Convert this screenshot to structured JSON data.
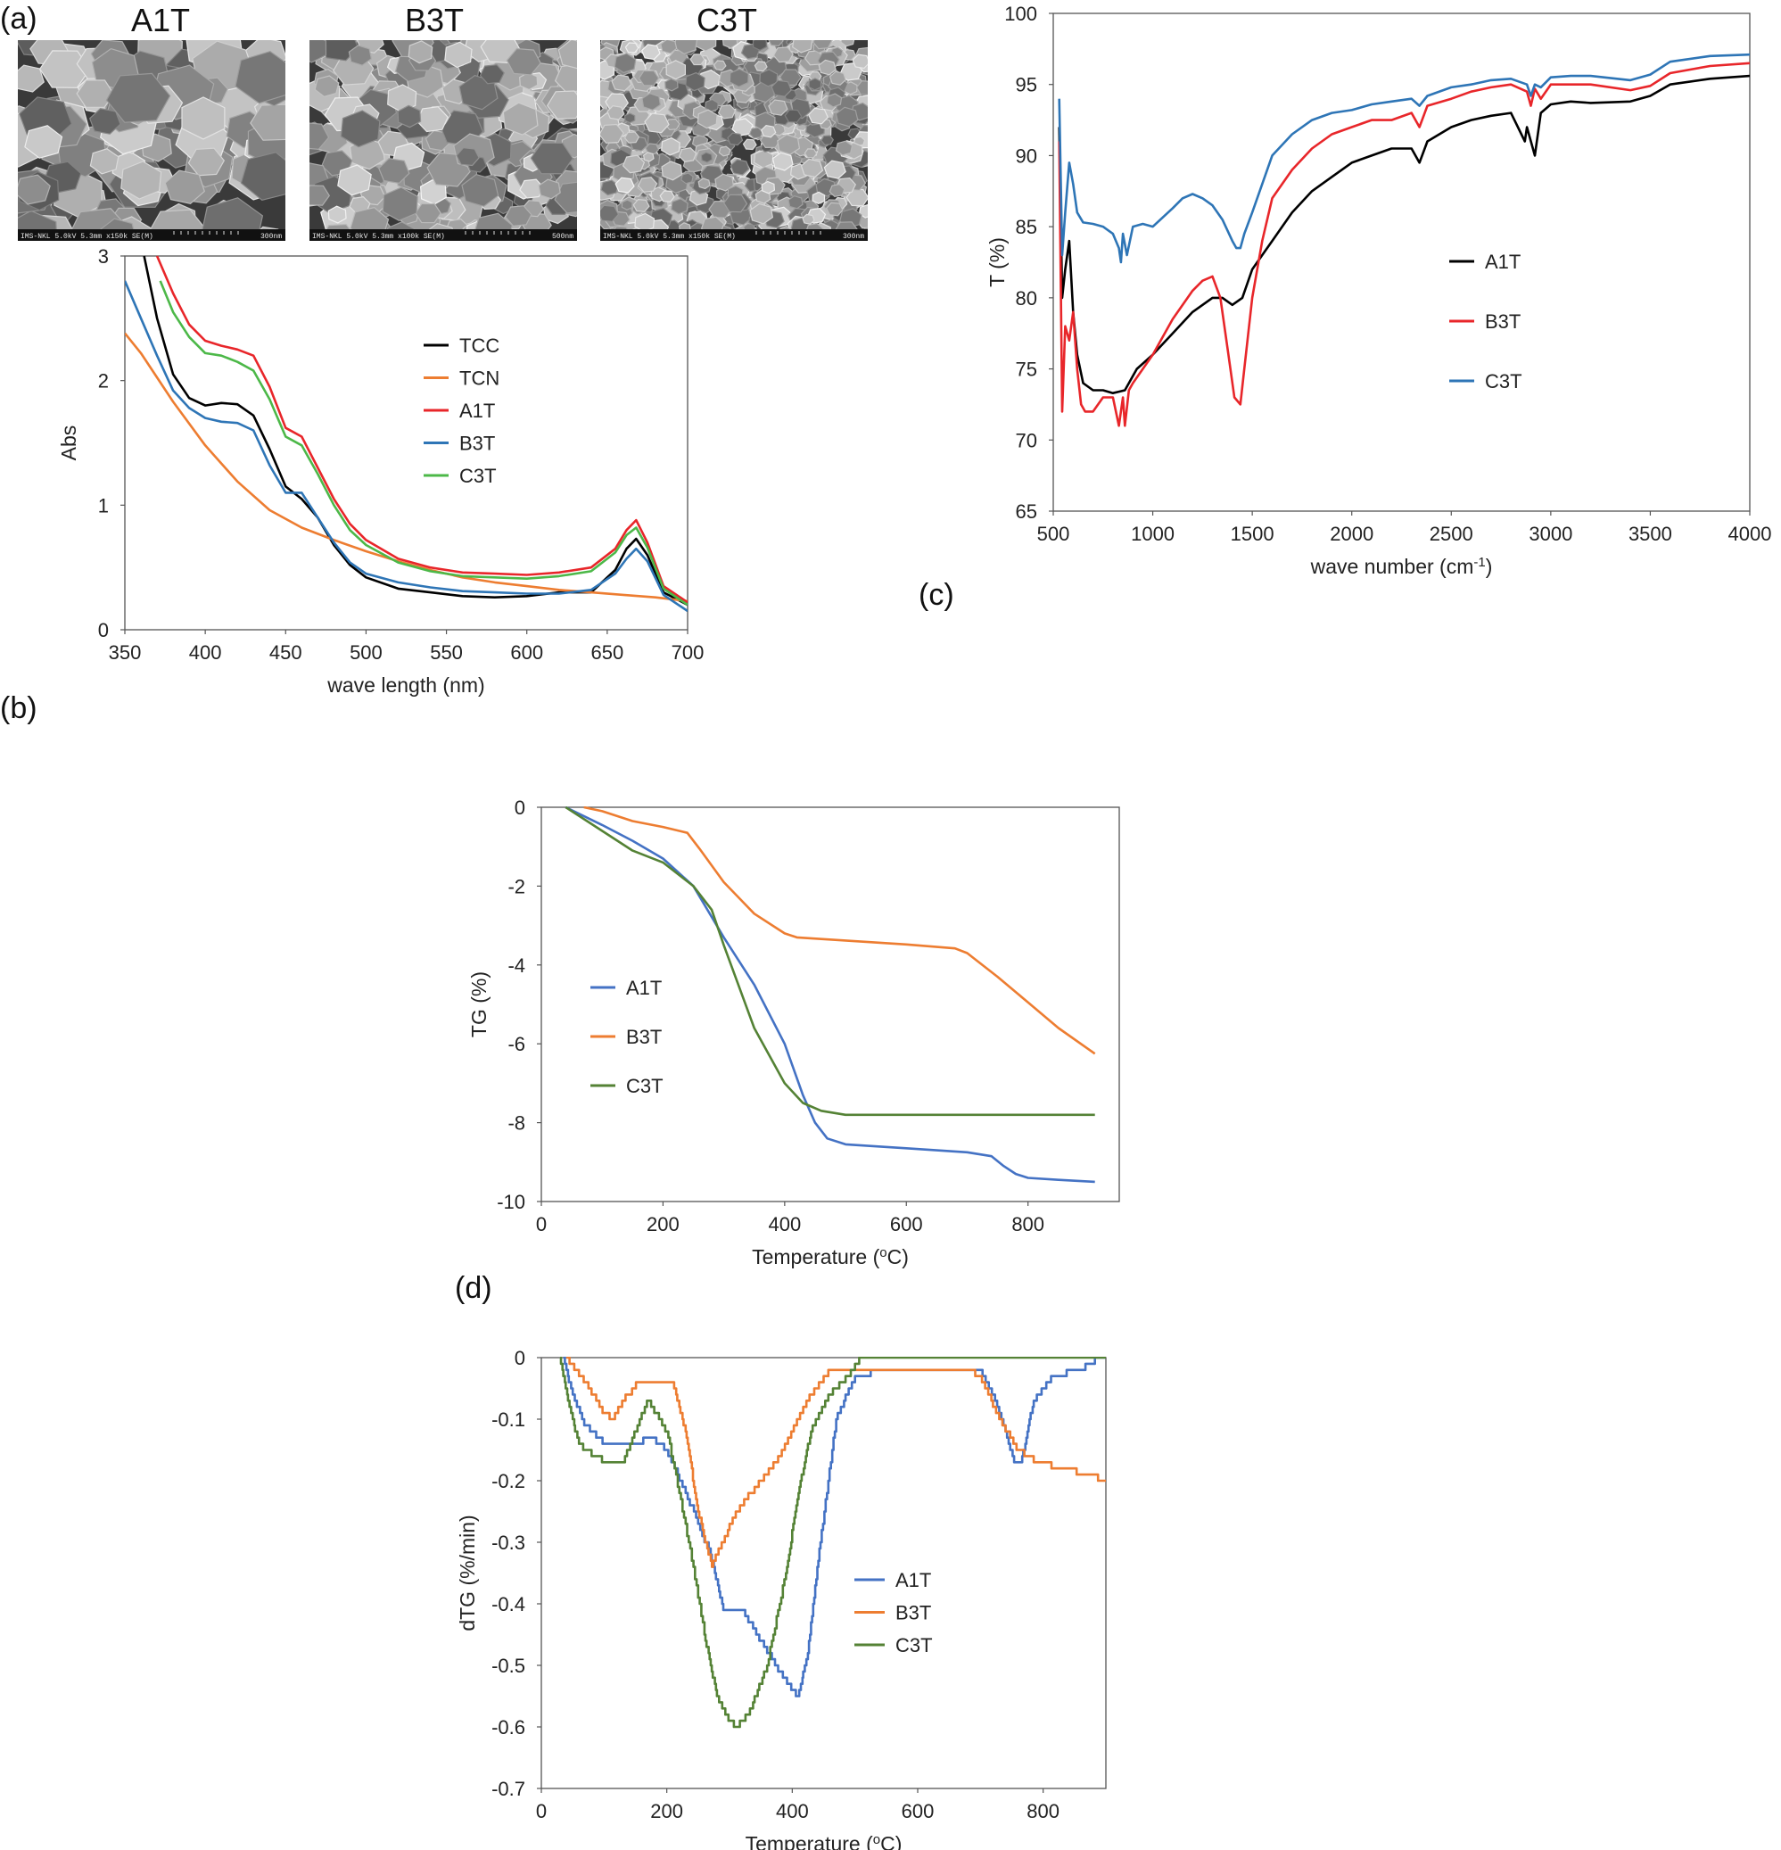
{
  "panel_labels": {
    "a": "(a)",
    "b": "(b)",
    "c": "(c)",
    "d": "(d)"
  },
  "sem": [
    {
      "title": "A1T",
      "caption": "IMS-NKL 5.0kV 5.3mm x150k SE(M)",
      "scale": "300nm",
      "grain": "large"
    },
    {
      "title": "B3T",
      "caption": "IMS-NKL 5.0kV 5.3mm x100k SE(M)",
      "scale": "500nm",
      "grain": "medium"
    },
    {
      "title": "C3T",
      "caption": "IMS-NKL 5.0kV 5.3mm x150k SE(M)",
      "scale": "300nm",
      "grain": "fine"
    }
  ],
  "chart_data": [
    {
      "id": "uvvis",
      "type": "line",
      "xlabel": "wave length (nm)",
      "ylabel": "Abs",
      "xlim": [
        350,
        700
      ],
      "ylim": [
        0,
        3
      ],
      "xticks": [
        350,
        400,
        450,
        500,
        550,
        600,
        650,
        700
      ],
      "yticks": [
        0,
        1,
        2,
        3
      ],
      "grid": false,
      "legend": "right",
      "series": [
        {
          "name": "TCC",
          "color": "#000000",
          "x": [
            362,
            370,
            380,
            390,
            400,
            410,
            420,
            430,
            440,
            450,
            460,
            470,
            480,
            490,
            500,
            520,
            540,
            560,
            580,
            600,
            620,
            640,
            655,
            662,
            668,
            675,
            685,
            700
          ],
          "y": [
            3.0,
            2.5,
            2.05,
            1.86,
            1.8,
            1.82,
            1.81,
            1.72,
            1.45,
            1.15,
            1.05,
            0.9,
            0.68,
            0.52,
            0.42,
            0.33,
            0.3,
            0.27,
            0.26,
            0.27,
            0.3,
            0.3,
            0.48,
            0.65,
            0.73,
            0.6,
            0.3,
            0.2
          ]
        },
        {
          "name": "TCN",
          "color": "#ED7D31",
          "x": [
            350,
            360,
            380,
            400,
            420,
            440,
            460,
            480,
            500,
            520,
            540,
            560,
            580,
            600,
            620,
            640,
            660,
            680,
            700
          ],
          "y": [
            2.38,
            2.22,
            1.83,
            1.48,
            1.19,
            0.96,
            0.82,
            0.72,
            0.63,
            0.55,
            0.48,
            0.42,
            0.38,
            0.35,
            0.32,
            0.3,
            0.28,
            0.26,
            0.23
          ]
        },
        {
          "name": "A1T",
          "color": "#E8262A",
          "x": [
            370,
            380,
            390,
            400,
            410,
            420,
            430,
            440,
            450,
            460,
            470,
            480,
            490,
            500,
            520,
            540,
            560,
            580,
            600,
            620,
            640,
            655,
            662,
            668,
            675,
            685,
            700
          ],
          "y": [
            3.0,
            2.7,
            2.45,
            2.32,
            2.28,
            2.25,
            2.2,
            1.95,
            1.62,
            1.55,
            1.3,
            1.05,
            0.85,
            0.72,
            0.57,
            0.5,
            0.46,
            0.45,
            0.44,
            0.46,
            0.5,
            0.65,
            0.8,
            0.88,
            0.7,
            0.35,
            0.22
          ]
        },
        {
          "name": "B3T",
          "color": "#2E75B6",
          "x": [
            350,
            360,
            370,
            380,
            390,
            400,
            410,
            420,
            430,
            440,
            450,
            460,
            470,
            480,
            490,
            500,
            520,
            540,
            560,
            580,
            600,
            620,
            640,
            655,
            662,
            668,
            675,
            685,
            700
          ],
          "y": [
            2.8,
            2.5,
            2.2,
            1.92,
            1.78,
            1.7,
            1.67,
            1.66,
            1.6,
            1.32,
            1.1,
            1.1,
            0.9,
            0.7,
            0.54,
            0.45,
            0.38,
            0.34,
            0.31,
            0.3,
            0.29,
            0.29,
            0.32,
            0.45,
            0.57,
            0.65,
            0.55,
            0.28,
            0.15
          ]
        },
        {
          "name": "C3T",
          "color": "#4CB848",
          "x": [
            372,
            380,
            390,
            400,
            410,
            420,
            430,
            440,
            450,
            460,
            470,
            480,
            490,
            500,
            520,
            540,
            560,
            580,
            600,
            620,
            640,
            655,
            662,
            668,
            675,
            685,
            700
          ],
          "y": [
            2.8,
            2.55,
            2.35,
            2.22,
            2.2,
            2.15,
            2.08,
            1.85,
            1.55,
            1.48,
            1.25,
            1.0,
            0.8,
            0.68,
            0.54,
            0.47,
            0.43,
            0.42,
            0.41,
            0.43,
            0.47,
            0.62,
            0.76,
            0.82,
            0.66,
            0.33,
            0.2
          ]
        }
      ]
    },
    {
      "id": "ftir",
      "type": "line",
      "xlabel": "wave number (cm-1)",
      "xlabel_main": "wave number (cm",
      "xlabel_sup": "-1",
      "xlabel_end": ")",
      "ylabel": "T (%)",
      "xlim": [
        500,
        4000
      ],
      "ylim": [
        65,
        100
      ],
      "xticks": [
        500,
        1000,
        1500,
        2000,
        2500,
        3000,
        3500,
        4000
      ],
      "yticks": [
        65,
        70,
        75,
        80,
        85,
        90,
        95,
        100
      ],
      "grid": false,
      "legend": "right",
      "series": [
        {
          "name": "A1T",
          "color": "#000000",
          "x": [
            530,
            545,
            560,
            580,
            600,
            620,
            650,
            700,
            750,
            800,
            830,
            860,
            880,
            920,
            1000,
            1100,
            1200,
            1300,
            1350,
            1400,
            1450,
            1500,
            1550,
            1600,
            1700,
            1800,
            1900,
            2000,
            2100,
            2200,
            2300,
            2340,
            2380,
            2500,
            2600,
            2700,
            2800,
            2870,
            2880,
            2920,
            2950,
            3000,
            3100,
            3200,
            3400,
            3500,
            3600,
            3800,
            4000
          ],
          "y": [
            92,
            80,
            82,
            84,
            79,
            76,
            74,
            73.5,
            73.5,
            73.3,
            73.4,
            73.5,
            74,
            75,
            76,
            77.5,
            79,
            80,
            80,
            79.5,
            80,
            82,
            83,
            84,
            86,
            87.5,
            88.5,
            89.5,
            90,
            90.5,
            90.5,
            89.5,
            91,
            92,
            92.5,
            92.8,
            93,
            91,
            92,
            90,
            93,
            93.6,
            93.8,
            93.7,
            93.8,
            94.2,
            95,
            95.4,
            95.6
          ]
        },
        {
          "name": "B3T",
          "color": "#E8262A",
          "x": [
            530,
            545,
            560,
            580,
            600,
            620,
            640,
            660,
            700,
            750,
            800,
            830,
            850,
            860,
            880,
            900,
            950,
            1000,
            1100,
            1200,
            1250,
            1300,
            1340,
            1380,
            1410,
            1440,
            1460,
            1500,
            1550,
            1600,
            1700,
            1800,
            1900,
            2000,
            2100,
            2200,
            2300,
            2340,
            2380,
            2500,
            2600,
            2700,
            2800,
            2880,
            2900,
            2920,
            2950,
            3000,
            3100,
            3200,
            3400,
            3500,
            3600,
            3800,
            4000
          ],
          "y": [
            91,
            72,
            78,
            77,
            79,
            75,
            72.5,
            72,
            72,
            73,
            73,
            71,
            73,
            71,
            73.5,
            74,
            75,
            76,
            78.5,
            80.5,
            81.2,
            81.5,
            80,
            76,
            73,
            72.5,
            75,
            80,
            84,
            87,
            89,
            90.5,
            91.5,
            92,
            92.5,
            92.5,
            93,
            92,
            93.5,
            94,
            94.5,
            94.8,
            95,
            94.5,
            93.5,
            94.7,
            94,
            95,
            95,
            95,
            94.6,
            94.9,
            95.8,
            96.3,
            96.5
          ]
        },
        {
          "name": "C3T",
          "color": "#2E75B6",
          "x": [
            530,
            545,
            560,
            580,
            600,
            620,
            650,
            700,
            750,
            800,
            830,
            840,
            850,
            870,
            900,
            950,
            1000,
            1100,
            1150,
            1200,
            1250,
            1300,
            1350,
            1400,
            1420,
            1440,
            1460,
            1500,
            1550,
            1600,
            1700,
            1800,
            1900,
            2000,
            2100,
            2200,
            2300,
            2340,
            2380,
            2500,
            2600,
            2700,
            2800,
            2880,
            2900,
            2920,
            2950,
            3000,
            3100,
            3200,
            3400,
            3500,
            3600,
            3800,
            4000
          ],
          "y": [
            94,
            83,
            86,
            89.5,
            88,
            86,
            85.3,
            85.2,
            85,
            84.5,
            83.5,
            82.5,
            84.5,
            83,
            85,
            85.2,
            85,
            86.3,
            87,
            87.3,
            87,
            86.5,
            85.5,
            84,
            83.5,
            83.5,
            84.5,
            86,
            88,
            90,
            91.5,
            92.5,
            93,
            93.2,
            93.6,
            93.8,
            94,
            93.5,
            94.2,
            94.8,
            95,
            95.3,
            95.4,
            95,
            94.2,
            95,
            94.8,
            95.5,
            95.6,
            95.6,
            95.3,
            95.7,
            96.6,
            97,
            97.1
          ]
        }
      ]
    },
    {
      "id": "tg",
      "type": "line",
      "xlabel": "Temperature (oC)",
      "xlabel_main": "Temperature (",
      "xlabel_sup": "o",
      "xlabel_end": "C)",
      "ylabel": "TG (%)",
      "xlim": [
        0,
        950
      ],
      "ylim": [
        -10,
        0
      ],
      "xticks": [
        0,
        200,
        400,
        600,
        800
      ],
      "yticks": [
        0,
        -2,
        -4,
        -6,
        -8,
        -10
      ],
      "grid": false,
      "legend": "left-center",
      "series": [
        {
          "name": "A1T",
          "color": "#4472C4",
          "x": [
            40,
            100,
            150,
            200,
            250,
            300,
            350,
            400,
            430,
            450,
            470,
            500,
            600,
            700,
            740,
            760,
            780,
            800,
            850,
            910
          ],
          "y": [
            0,
            -0.45,
            -0.85,
            -1.3,
            -2.0,
            -3.3,
            -4.5,
            -6.0,
            -7.3,
            -8.0,
            -8.4,
            -8.55,
            -8.65,
            -8.75,
            -8.85,
            -9.1,
            -9.3,
            -9.4,
            -9.45,
            -9.5
          ]
        },
        {
          "name": "B3T",
          "color": "#ED7D31",
          "x": [
            70,
            100,
            150,
            200,
            240,
            260,
            300,
            350,
            400,
            420,
            500,
            600,
            680,
            700,
            750,
            800,
            850,
            910
          ],
          "y": [
            0,
            -0.1,
            -0.35,
            -0.5,
            -0.65,
            -1.05,
            -1.9,
            -2.7,
            -3.2,
            -3.3,
            -3.38,
            -3.48,
            -3.58,
            -3.7,
            -4.3,
            -4.95,
            -5.6,
            -6.25
          ]
        },
        {
          "name": "C3T",
          "color": "#548235",
          "x": [
            40,
            100,
            150,
            200,
            250,
            280,
            300,
            350,
            400,
            430,
            460,
            500,
            600,
            700,
            800,
            910
          ],
          "y": [
            0,
            -0.6,
            -1.1,
            -1.4,
            -2.0,
            -2.6,
            -3.5,
            -5.6,
            -7.0,
            -7.5,
            -7.7,
            -7.8,
            -7.8,
            -7.8,
            -7.8,
            -7.8
          ]
        }
      ]
    },
    {
      "id": "dtg",
      "type": "line",
      "xlabel": "Temperature (oC)",
      "xlabel_main": "Temperature (",
      "xlabel_sup": "o",
      "xlabel_end": "C)",
      "ylabel": "dTG (%/min)",
      "xlim": [
        0,
        900
      ],
      "ylim": [
        -0.7,
        0
      ],
      "xticks": [
        0,
        200,
        400,
        600,
        800
      ],
      "yticks": [
        0,
        -0.1,
        -0.2,
        -0.3,
        -0.4,
        -0.5,
        -0.6,
        -0.7
      ],
      "grid": false,
      "legend": "right-center",
      "series": [
        {
          "name": "A1T",
          "color": "#4472C4",
          "x": [
            35,
            50,
            70,
            100,
            150,
            175,
            200,
            230,
            270,
            290,
            320,
            350,
            380,
            400,
            410,
            425,
            445,
            470,
            500,
            550,
            650,
            700,
            720,
            740,
            755,
            765,
            785,
            815,
            860,
            875,
            890,
            900
          ],
          "y": [
            0,
            -0.06,
            -0.11,
            -0.14,
            -0.14,
            -0.13,
            -0.15,
            -0.22,
            -0.32,
            -0.41,
            -0.41,
            -0.46,
            -0.51,
            -0.54,
            -0.55,
            -0.48,
            -0.3,
            -0.1,
            -0.03,
            -0.02,
            -0.02,
            -0.02,
            -0.06,
            -0.12,
            -0.17,
            -0.17,
            -0.07,
            -0.03,
            -0.02,
            -0.01,
            0,
            0
          ]
        },
        {
          "name": "B3T",
          "color": "#ED7D31",
          "x": [
            40,
            70,
            100,
            115,
            130,
            155,
            180,
            210,
            230,
            250,
            272,
            280,
            310,
            350,
            380,
            400,
            430,
            460,
            480,
            550,
            680,
            700,
            730,
            760,
            790,
            830,
            870,
            900
          ],
          "y": [
            0,
            -0.04,
            -0.09,
            -0.1,
            -0.07,
            -0.04,
            -0.04,
            -0.04,
            -0.12,
            -0.25,
            -0.34,
            -0.32,
            -0.25,
            -0.2,
            -0.16,
            -0.12,
            -0.06,
            -0.02,
            -0.02,
            -0.02,
            -0.02,
            -0.03,
            -0.1,
            -0.15,
            -0.17,
            -0.18,
            -0.19,
            -0.2
          ]
        },
        {
          "name": "C3T",
          "color": "#548235",
          "x": [
            30,
            45,
            60,
            100,
            130,
            150,
            170,
            200,
            230,
            260,
            280,
            300,
            312,
            330,
            360,
            390,
            410,
            430,
            460,
            490,
            510,
            520,
            600,
            700,
            800,
            900
          ],
          "y": [
            0,
            -0.08,
            -0.14,
            -0.17,
            -0.17,
            -0.12,
            -0.07,
            -0.12,
            -0.27,
            -0.45,
            -0.55,
            -0.59,
            -0.6,
            -0.58,
            -0.5,
            -0.35,
            -0.22,
            -0.12,
            -0.06,
            -0.03,
            0,
            0,
            0,
            0,
            0,
            0
          ]
        }
      ]
    }
  ]
}
